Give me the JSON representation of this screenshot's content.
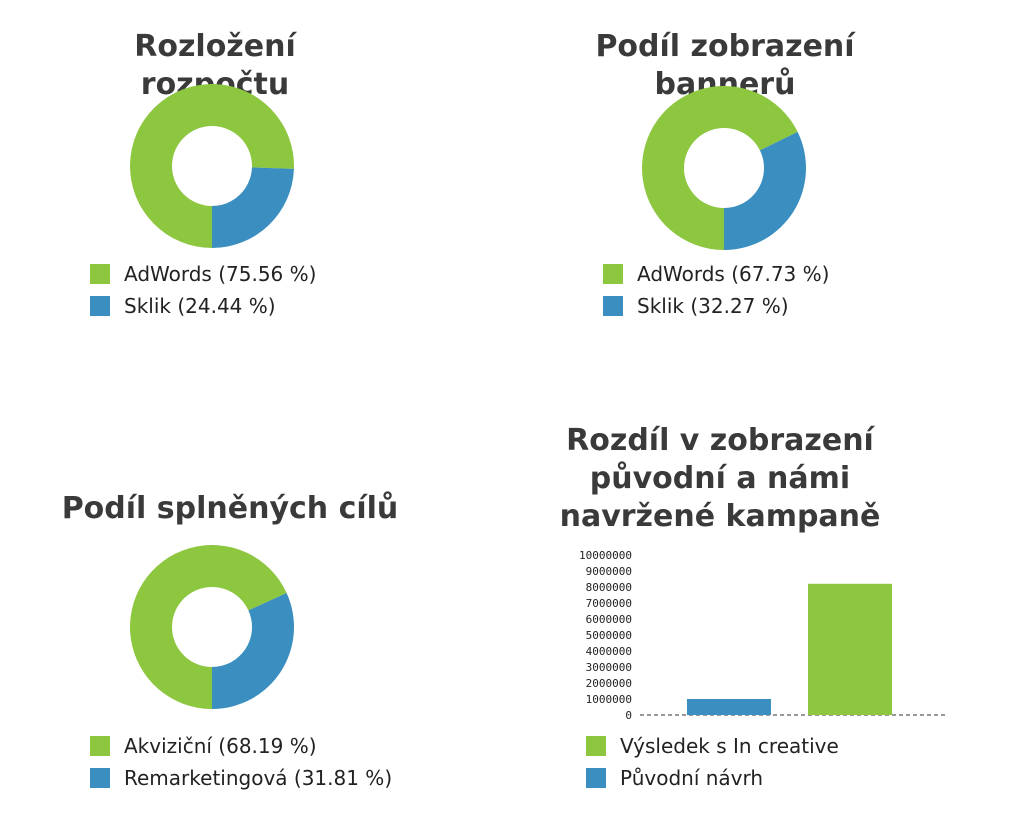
{
  "colors": {
    "green": "#8dc63f",
    "blue": "#3a8fc0"
  },
  "chart_data": [
    {
      "type": "pie",
      "title": "Rozložení rozpočtu",
      "series": [
        {
          "name": "AdWords (75.56 %)",
          "value": 75.56,
          "color": "#8dc63f"
        },
        {
          "name": "Sklik (24.44 %)",
          "value": 24.44,
          "color": "#3a8fc0"
        }
      ]
    },
    {
      "type": "pie",
      "title": "Podíl zobrazení bannerů",
      "series": [
        {
          "name": "AdWords (67.73 %)",
          "value": 67.73,
          "color": "#8dc63f"
        },
        {
          "name": "Sklik (32.27 %)",
          "value": 32.27,
          "color": "#3a8fc0"
        }
      ]
    },
    {
      "type": "pie",
      "title": "Podíl splněných cílů",
      "series": [
        {
          "name": "Akviziční (68.19 %)",
          "value": 68.19,
          "color": "#8dc63f"
        },
        {
          "name": "Remarketingová (31.81 %)",
          "value": 31.81,
          "color": "#3a8fc0"
        }
      ]
    },
    {
      "type": "bar",
      "title": "Rozdíl v zobrazení původní a námi navržené kampaně",
      "ylim": [
        0,
        10000000
      ],
      "yticks": [
        "10000000",
        "9000000",
        "8000000",
        "7000000",
        "6000000",
        "5000000",
        "4000000",
        "3000000",
        "2000000",
        "1000000",
        "0"
      ],
      "series": [
        {
          "name": "Původní návrh",
          "value": 1000000,
          "color": "#3a8fc0"
        },
        {
          "name": "Výsledek s In creative",
          "value": 8200000,
          "color": "#8dc63f"
        }
      ],
      "legend": [
        "Výsledek s In creative",
        "Původní návrh"
      ]
    }
  ]
}
